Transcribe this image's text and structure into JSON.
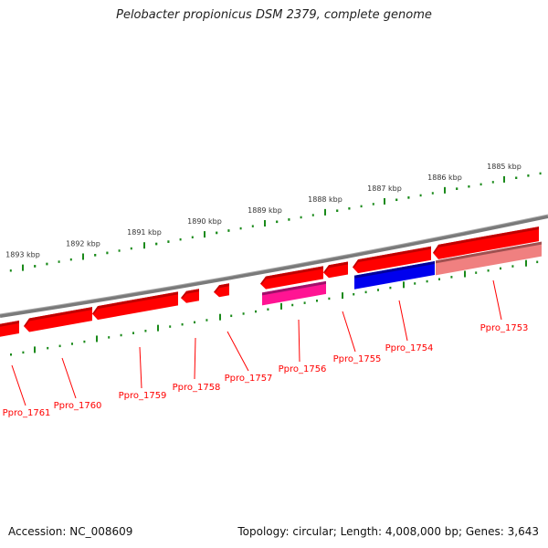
{
  "title": "Pelobacter propionicus DSM 2379, complete genome",
  "footer": {
    "accession": "Accession: NC_008609",
    "stats": "Topology: circular; Length: 4,008,000 bp; Genes: 3,643"
  },
  "scale_labels": [
    "1893 kbp",
    "1892 kbp",
    "1891 kbp",
    "1890 kbp",
    "1889 kbp",
    "1888 kbp",
    "1887 kbp",
    "1886 kbp",
    "1885 kbp"
  ],
  "genes": [
    {
      "label": "Ppro_1761",
      "color": "#ff0000"
    },
    {
      "label": "Ppro_1760",
      "color": "#ff0000"
    },
    {
      "label": "Ppro_1759",
      "color": "#ff0000"
    },
    {
      "label": "Ppro_1758",
      "color": "#ff0000"
    },
    {
      "label": "Ppro_1757",
      "color": "#ff0000"
    },
    {
      "label": "Ppro_1756",
      "color": "#ff0000",
      "feature_color": "#ff1493"
    },
    {
      "label": "Ppro_1755",
      "color": "#ff0000"
    },
    {
      "label": "Ppro_1754",
      "color": "#ff0000",
      "feature_color": "#0000ee"
    },
    {
      "label": "Ppro_1753",
      "color": "#ff0000",
      "feature_color": "#f08080"
    }
  ],
  "colors": {
    "backbone": "#808080",
    "ticks": "#1a8a1a",
    "labels": "#ff0000"
  }
}
